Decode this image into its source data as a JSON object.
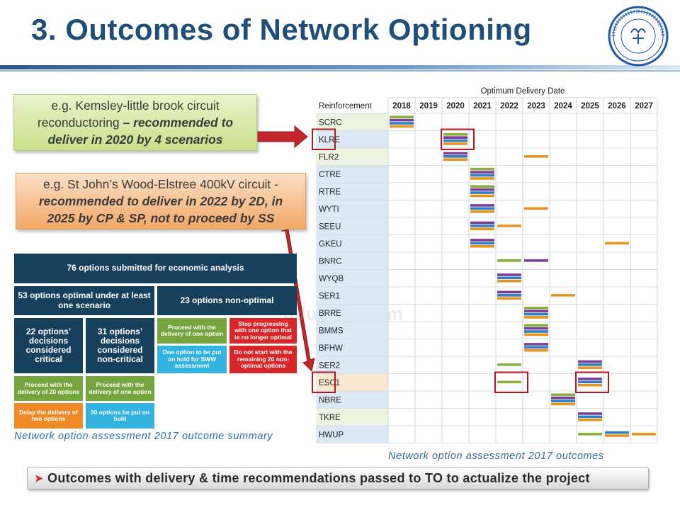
{
  "slide": {
    "title": "3. Outcomes of Network Optioning",
    "colors": {
      "title": "#1f4e79",
      "accent_red": "#c0262c"
    }
  },
  "callouts": {
    "c1_line1": "e.g. Kemsley-little brook circuit",
    "c1_line2a": "reconductoring ",
    "c1_line2b": "– recommended to",
    "c1_line3": "deliver in 2020 by 4 scenarios",
    "c2_line1": "e.g. St John’s Wood-Elstree 400kV circuit -",
    "c2_line2": "recommended to deliver in 2022 by 2D, in",
    "c2_line3": "2025 by CP & SP, not to proceed by SS"
  },
  "summary": {
    "top": "76 options submitted for economic analysis",
    "optimal": "53 options optimal under at least one scenario",
    "nonoptimal": "23 options non-optimal",
    "critical": "22 options’ decisions considered critical",
    "noncritical": "31 options’ decisions considered non-critical",
    "proceed_one_nonopt": "Proceed with the delivery of one option",
    "stop_progress": "Stop progressing with one option that is no longer optimal",
    "hold_sww": "One option to be put on hold for SWW assessment",
    "do_not_start": "Do not start with the remaining 20 non-optimal options",
    "proceed_20": "Proceed with the delivery of 20 options",
    "proceed_one": "Proceed with the delivery of one option",
    "delay_two": "Delay the delivery of two options",
    "hold_30": "30 options be put on hold",
    "caption": "Network option assessment 2017 outcome summary"
  },
  "chart_data": {
    "type": "table",
    "title": "Optimum Delivery Date",
    "row_header": "Reinforcement",
    "years": [
      "2018",
      "2019",
      "2020",
      "2021",
      "2022",
      "2023",
      "2024",
      "2025",
      "2026",
      "2027"
    ],
    "scenario_colors": [
      "#8aae3e",
      "#7b3f98",
      "#2f7fc1",
      "#e8951f"
    ],
    "rows": [
      {
        "name": "SCRC",
        "bars": [
          [
            "2018",
            4
          ]
        ]
      },
      {
        "name": "KLRE",
        "bars": [
          [
            "2020",
            4
          ]
        ],
        "highlight": "2020"
      },
      {
        "name": "FLR2",
        "bars": [
          [
            "2020",
            3
          ],
          [
            "2023",
            1
          ]
        ]
      },
      {
        "name": "CTRE",
        "bars": [
          [
            "2021",
            4
          ]
        ]
      },
      {
        "name": "RTRE",
        "bars": [
          [
            "2021",
            4
          ]
        ]
      },
      {
        "name": "WYTI",
        "bars": [
          [
            "2021",
            3
          ],
          [
            "2023",
            1
          ]
        ]
      },
      {
        "name": "SEEU",
        "bars": [
          [
            "2021",
            3
          ],
          [
            "2022",
            1
          ]
        ]
      },
      {
        "name": "GKEU",
        "bars": [
          [
            "2021",
            3
          ],
          [
            "2026",
            1
          ]
        ]
      },
      {
        "name": "BNRC",
        "bars": [
          [
            "2022",
            1
          ],
          [
            "2023",
            1
          ]
        ]
      },
      {
        "name": "WYQB",
        "bars": [
          [
            "2022",
            3
          ]
        ]
      },
      {
        "name": "SER1",
        "bars": [
          [
            "2022",
            3
          ],
          [
            "2024",
            1
          ]
        ]
      },
      {
        "name": "BRRE",
        "bars": [
          [
            "2023",
            4
          ]
        ]
      },
      {
        "name": "BMMS",
        "bars": [
          [
            "2023",
            4
          ]
        ]
      },
      {
        "name": "BFHW",
        "bars": [
          [
            "2023",
            3
          ]
        ]
      },
      {
        "name": "SER2",
        "bars": [
          [
            "2022",
            1
          ],
          [
            "2025",
            3
          ]
        ]
      },
      {
        "name": "ESC1",
        "bars": [
          [
            "2022",
            1
          ],
          [
            "2025",
            3
          ]
        ],
        "highlight2": [
          "2022",
          "2025"
        ]
      },
      {
        "name": "NBRE",
        "bars": [
          [
            "2024",
            4
          ]
        ]
      },
      {
        "name": "TKRE",
        "bars": [
          [
            "2025",
            3
          ]
        ]
      },
      {
        "name": "HWUP",
        "bars": [
          [
            "2025",
            1
          ],
          [
            "2026",
            2
          ],
          [
            "2027",
            1
          ]
        ]
      }
    ],
    "caption": "Network option assessment 2017 outcomes"
  },
  "banner": {
    "text": "Outcomes with delivery & time recommendations passed to TO to actualize the project"
  }
}
